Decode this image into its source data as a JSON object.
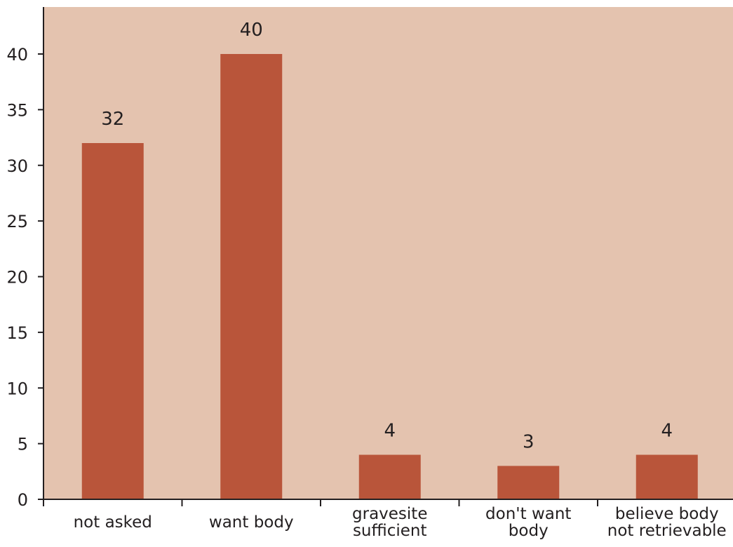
{
  "colors": {
    "plot_background": "#e4c3af",
    "bar": "#b9553a",
    "axis": "#231f20",
    "text": "#231f20"
  },
  "chart_data": {
    "type": "bar",
    "title": "",
    "xlabel": "",
    "ylabel": "",
    "categories": [
      [
        "not asked"
      ],
      [
        "want body"
      ],
      [
        "gravesite",
        "sufficient"
      ],
      [
        "don't want",
        "body"
      ],
      [
        "believe body",
        "not retrievable"
      ]
    ],
    "values": [
      32,
      40,
      4,
      3,
      4
    ],
    "data_labels": [
      "32",
      "40",
      "4",
      "3",
      "4"
    ],
    "ylim": [
      0,
      44
    ],
    "yticks": [
      0,
      5,
      10,
      15,
      20,
      25,
      30,
      35,
      40
    ],
    "grid": false,
    "legend": "none"
  }
}
